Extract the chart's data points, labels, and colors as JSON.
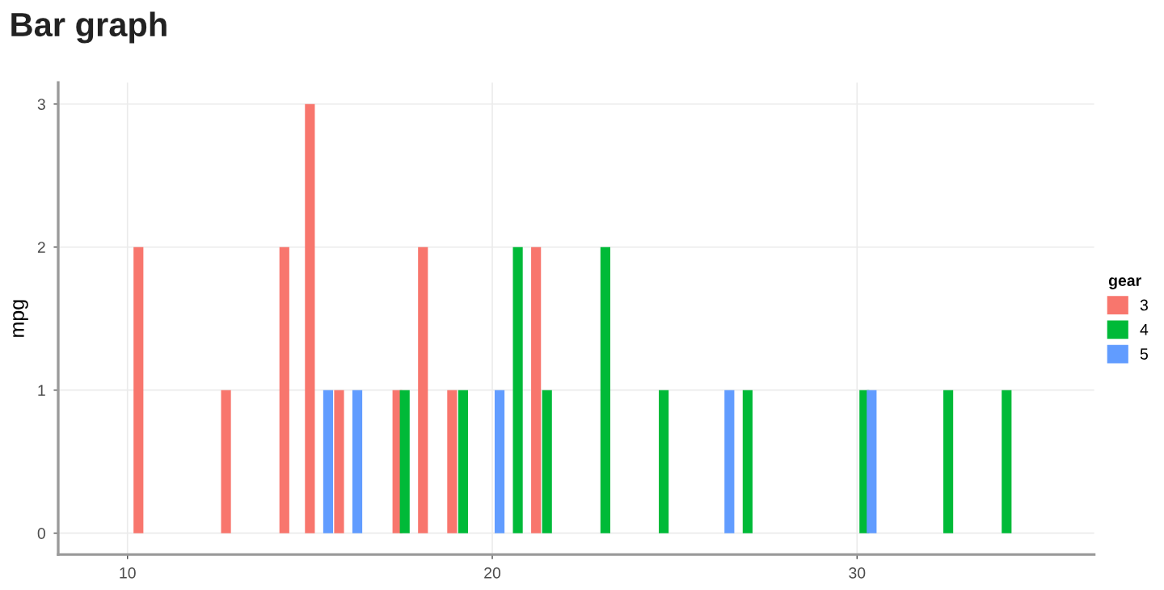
{
  "chart_data": {
    "type": "bar",
    "title": "Bar graph",
    "xlabel": null,
    "ylabel": "mpg",
    "legend_title": "gear",
    "legend": "right",
    "grid": true,
    "xlim": [
      8.1,
      36.5
    ],
    "xticks": [
      10,
      20,
      30
    ],
    "ylim": [
      -0.15,
      3.15
    ],
    "yticks": [
      0,
      1,
      2,
      3
    ],
    "series": [
      {
        "name": "3",
        "color": "#f8766d",
        "x": [
          10.3,
          12.7,
          14.3,
          15.0,
          15.8,
          17.4,
          18.1,
          18.9,
          21.2
        ],
        "values": [
          2,
          1,
          2,
          3,
          1,
          1,
          2,
          1,
          2
        ]
      },
      {
        "name": "4",
        "color": "#00ba38",
        "x": [
          17.6,
          19.2,
          20.7,
          21.5,
          23.1,
          24.7,
          27.0,
          30.2,
          32.5,
          34.1
        ],
        "values": [
          1,
          1,
          2,
          1,
          2,
          1,
          1,
          1,
          1,
          1
        ]
      },
      {
        "name": "5",
        "color": "#619cff",
        "x": [
          15.5,
          16.3,
          20.2,
          26.5,
          30.4
        ],
        "values": [
          1,
          1,
          1,
          1,
          1
        ]
      }
    ]
  }
}
